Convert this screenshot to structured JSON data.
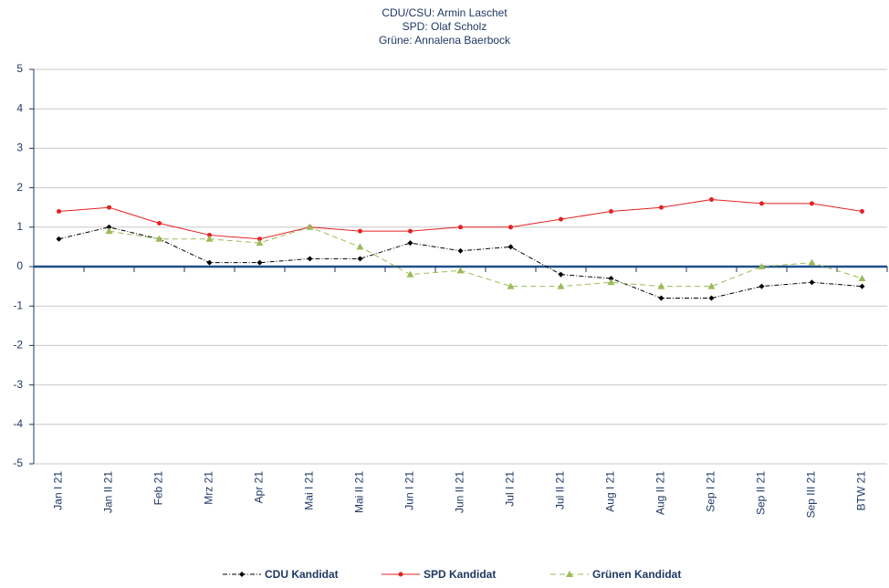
{
  "chart_data": {
    "type": "line",
    "title": [
      "CDU/CSU: Armin Laschet",
      "SPD: Olaf Scholz",
      "Grüne: Annalena Baerbock"
    ],
    "categories": [
      "Jan I 21",
      "Jan II 21",
      "Feb 21",
      "Mrz 21",
      "Apr 21",
      "Mai I 21",
      "Mai II 21",
      "Jun I 21",
      "Jun II 21",
      "Jul I 21",
      "Jul II 21",
      "Aug I 21",
      "Aug II 21",
      "Sep I 21",
      "Sep II 21",
      "Sep III 21",
      "BTW 21"
    ],
    "series": [
      {
        "name": "CDU Kandidat",
        "color": "#000000",
        "values": [
          0.7,
          1.0,
          0.7,
          0.1,
          0.1,
          0.2,
          0.2,
          0.6,
          0.4,
          0.5,
          -0.2,
          -0.3,
          -0.8,
          -0.8,
          -0.5,
          -0.4,
          -0.5
        ]
      },
      {
        "name": "SPD Kandidat",
        "color": "#e32222",
        "values": [
          1.4,
          1.5,
          1.1,
          0.8,
          0.7,
          1.0,
          0.9,
          0.9,
          1.0,
          1.0,
          1.2,
          1.4,
          1.5,
          1.7,
          1.6,
          1.6,
          1.4
        ]
      },
      {
        "name": "Grünen Kandidat",
        "color": "#9bbb59",
        "values": [
          null,
          0.9,
          0.7,
          0.7,
          0.6,
          1.0,
          0.5,
          -0.2,
          -0.1,
          -0.5,
          -0.5,
          -0.4,
          -0.5,
          -0.5,
          0.0,
          0.1,
          -0.3
        ]
      }
    ],
    "ylim": [
      -5,
      5
    ],
    "yticks": [
      -5,
      -4,
      -3,
      -2,
      -1,
      0,
      1,
      2,
      3,
      4,
      5
    ],
    "grid": true
  }
}
